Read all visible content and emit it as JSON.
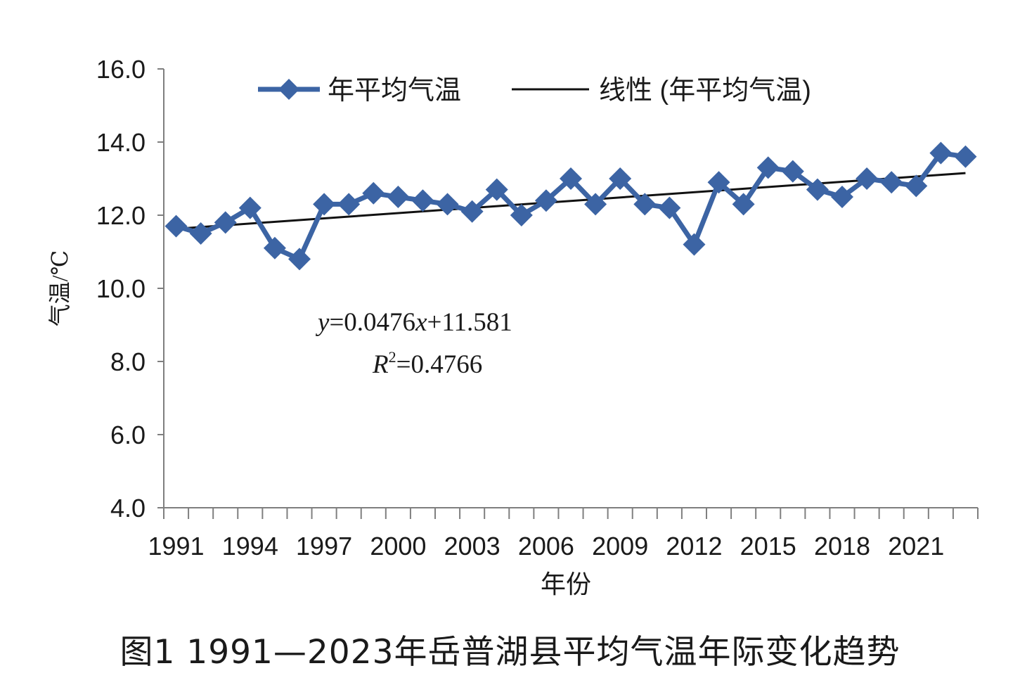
{
  "figure_caption": "图1  1991—2023年岳普湖县平均气温年际变化趋势",
  "equation": {
    "prefix_var": "y",
    "rest": "=0.0476",
    "x_var": "x",
    "tail": "+11.581"
  },
  "r_squared": {
    "var": "R",
    "sup": "2",
    "rest": "=0.4766"
  },
  "colors": {
    "series": "#3c64a4",
    "trend": "#111111",
    "axis": "#7f7f7f"
  },
  "chart_data": {
    "type": "line",
    "xlabel": "年份",
    "ylabel": "气温/℃",
    "ylim": [
      4.0,
      16.0
    ],
    "y_ticks": [
      "4.0",
      "6.0",
      "8.0",
      "10.0",
      "12.0",
      "14.0",
      "16.0"
    ],
    "x_tick_labels": [
      "1991",
      "1994",
      "1997",
      "2000",
      "2003",
      "2006",
      "2009",
      "2012",
      "2015",
      "2018",
      "2021"
    ],
    "legend_position": "top",
    "x": [
      1991,
      1992,
      1993,
      1994,
      1995,
      1996,
      1997,
      1998,
      1999,
      2000,
      2001,
      2002,
      2003,
      2004,
      2005,
      2006,
      2007,
      2008,
      2009,
      2010,
      2011,
      2012,
      2013,
      2014,
      2015,
      2016,
      2017,
      2018,
      2019,
      2020,
      2021,
      2022,
      2023
    ],
    "series": [
      {
        "name": "年平均气温",
        "marker": "diamond",
        "values": [
          11.7,
          11.5,
          11.8,
          12.2,
          11.1,
          10.8,
          12.3,
          12.3,
          12.6,
          12.5,
          12.4,
          12.3,
          12.1,
          12.7,
          12.0,
          12.4,
          13.0,
          12.3,
          13.0,
          12.3,
          12.2,
          11.2,
          12.9,
          12.3,
          13.3,
          13.2,
          12.7,
          12.5,
          13.0,
          12.9,
          12.8,
          13.7,
          13.6
        ]
      },
      {
        "name": "线性 (年平均气温)",
        "type": "trendline",
        "slope": 0.0476,
        "intercept": 11.581
      }
    ]
  }
}
